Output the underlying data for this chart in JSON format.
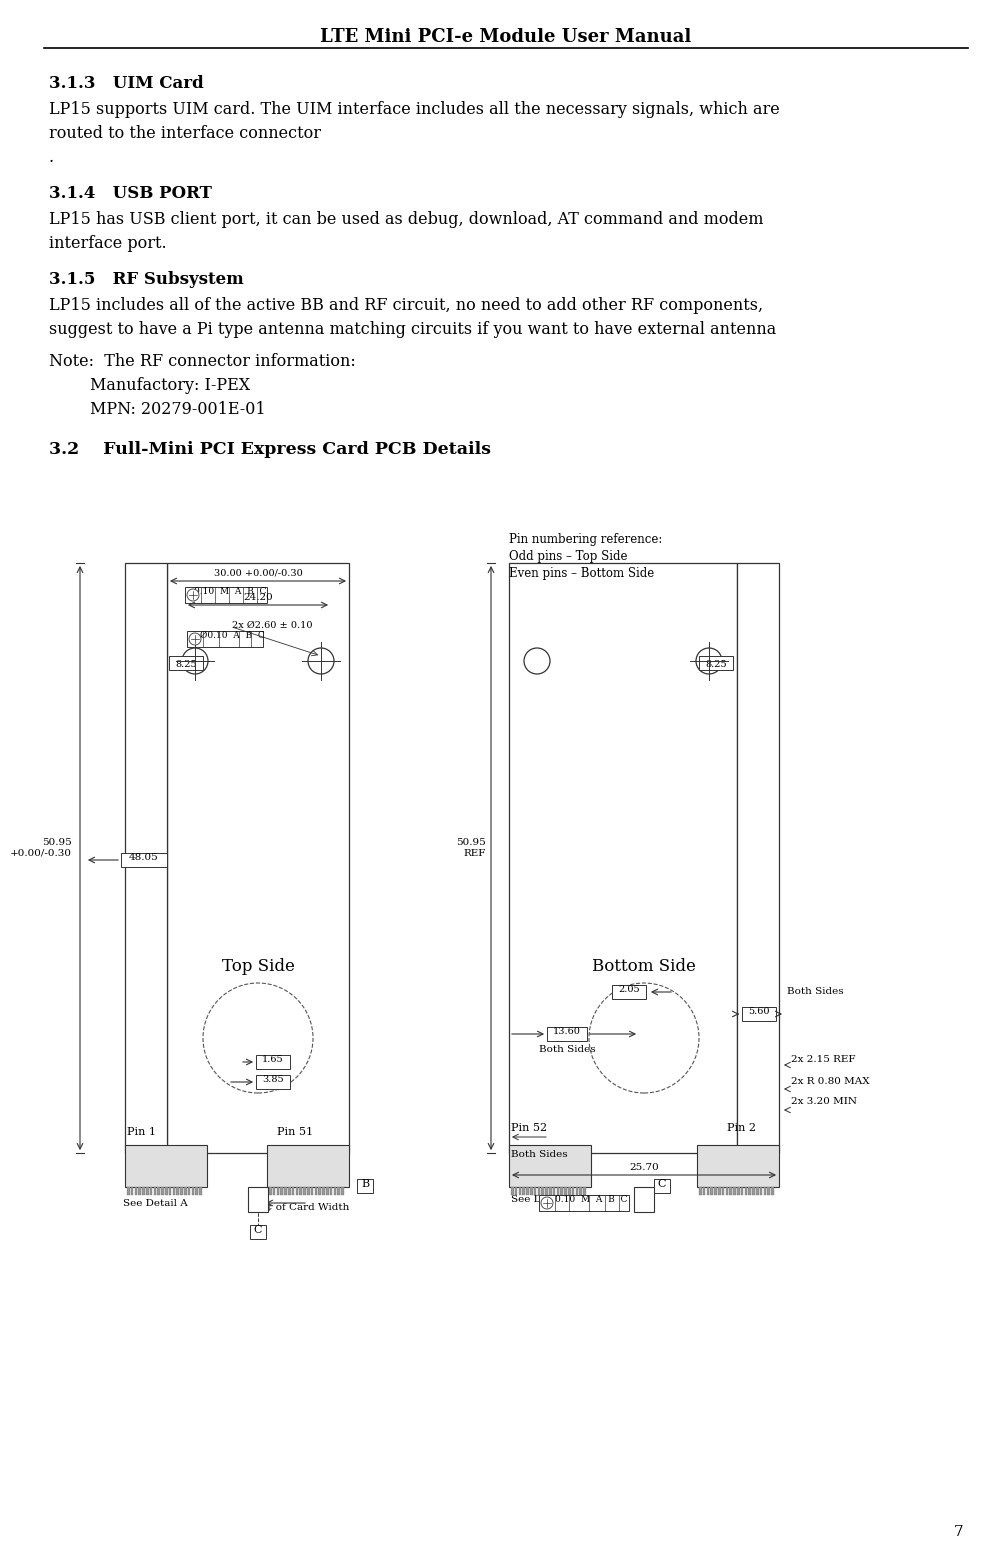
{
  "title": "LTE Mini PCI-e Module User Manual",
  "page_number": "7",
  "bg_color": "#ffffff",
  "text_color": "#000000",
  "sec313_num": "3.1.3",
  "sec313_head": "UIM Card",
  "sec313_body1": "LP15 supports UIM card. The UIM interface includes all the necessary signals, which are",
  "sec313_body2": "routed to the interface connector",
  "sec313_body3": ".",
  "sec314_num": "3.1.4",
  "sec314_head": "USB PORT",
  "sec314_body1": "LP15 has USB client port, it can be used as debug, download, AT command and modem",
  "sec314_body2": "interface port.",
  "sec315_num": "3.1.5",
  "sec315_head": "RF Subsystem",
  "sec315_body1": "LP15 includes all of the active BB and RF circuit, no need to add other RF components,",
  "sec315_body2": "suggest to have a Pi type antenna matching circuits if you want to have external antenna",
  "note1": "Note:  The RF connector information:",
  "note2": "        Manufactory: I-PEX",
  "note3": "        MPN: 20279-001E-01",
  "sec32_num": "3.2",
  "sec32_head": "Full-Mini PCI Express Card PCB Details",
  "pin_ref1": "Pin numbering reference:",
  "pin_ref2": "Odd pins – Top Side",
  "pin_ref3": "Even pins – Bottom Side",
  "top_side_label": "Top Side",
  "bottom_side_label": "Bottom Side",
  "dim_3000": "30.00 +0.00/-0.30",
  "dim_2420": "24.20",
  "dim_2x_hole": "2x Ø2.60 ± 0.10",
  "dim_825_left": "8.25",
  "dim_825_right": "8.25",
  "dim_5095_left": "50.95\n+0.00/-0.30",
  "dim_5095_right": "50.95\nREF",
  "dim_4805": "48.05",
  "dim_165": "1.65",
  "dim_385": "3.85",
  "dim_205": "2.05",
  "dim_560": "5.60",
  "dim_1360": "13.60",
  "dim_2570": "25.70",
  "label_pin1": "Pin 1",
  "label_pin51": "Pin 51",
  "label_pin52": "Pin 52",
  "label_pin2": "Pin 2",
  "label_see_a": "See Detail A",
  "label_see_b": "See Detail B",
  "label_c_width": "¢ of Card Width",
  "label_both_sides1": "Both Sides",
  "label_both_sides2": "Both Sides",
  "label_both_sides3": "Both Sides",
  "label_2x215": "2x 2.15 REF",
  "label_2xr080": "2x R 0.80 MAX",
  "label_2x320": "2x 3.20 MIN",
  "tol_top_left": "⊕ 0.10  M  A  B  C",
  "tol_mid_left": "⊕ Ø0.10  A  B  C",
  "tol_bottom_right": "⊕ 0.10  M  A  B  C"
}
